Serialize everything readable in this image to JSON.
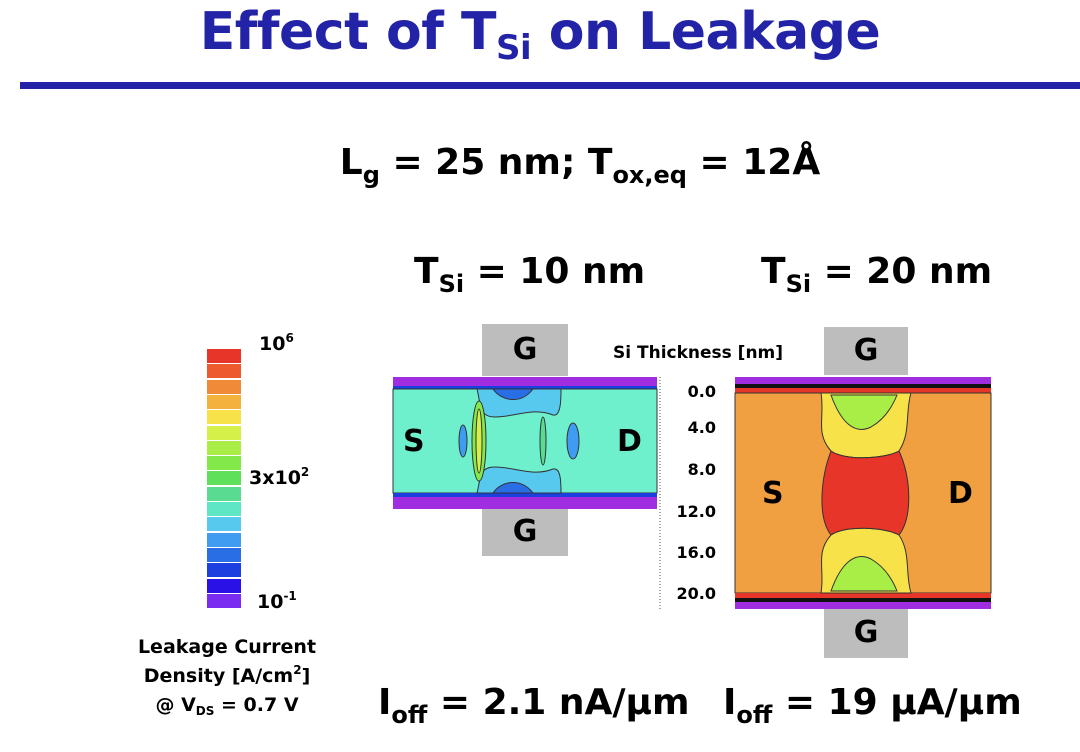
{
  "title": {
    "main_pre": "Effect of T",
    "main_sub": "Si",
    "main_post": " on Leakage"
  },
  "params": {
    "lg": "L",
    "lg_sub": "g",
    "lg_val": " = 25 nm; T",
    "tox_sub": "ox,eq",
    "tox_val": " = 12Å"
  },
  "devices": [
    {
      "tsi_pre": "T",
      "tsi_sub": "Si",
      "tsi_val": " = 10 nm",
      "ioff_pre": "I",
      "ioff_sub": "off",
      "ioff_val": " = 2.1 nA/μm",
      "gate_top": "G",
      "gate_bottom": "G",
      "source": "S",
      "drain": "D"
    },
    {
      "tsi_pre": "T",
      "tsi_sub": "Si",
      "tsi_val": " = 20 nm",
      "ioff_pre": "I",
      "ioff_sub": "off",
      "ioff_val": " = 19 μA/μm",
      "gate_top": "G",
      "gate_bottom": "G",
      "source": "S",
      "drain": "D"
    }
  ],
  "axis": {
    "title": "Si Thickness [nm]",
    "ticks": [
      "0.0",
      "4.0",
      "8.0",
      "12.0",
      "16.0",
      "20.0"
    ]
  },
  "colorbar": {
    "max_base": "10",
    "max_exp": "6",
    "mid_base": "3x10",
    "mid_exp": "2",
    "min_base": "10",
    "min_exp": "-1",
    "caption_line1": "Leakage Current",
    "caption_line2_pre": "Density [A/cm",
    "caption_line2_sup": "2",
    "caption_line2_post": "]",
    "caption_line3_pre": "@ V",
    "caption_line3_sub": "DS",
    "caption_line3_post": " = 0.7 V",
    "colors": [
      "#e8352a",
      "#ec5a2e",
      "#f08a38",
      "#f4b13e",
      "#f8e24a",
      "#d6f04a",
      "#a9ee46",
      "#83e84a",
      "#5fe05a",
      "#59dc92",
      "#5fe6c4",
      "#57c8ee",
      "#3f9cf0",
      "#2a6ee6",
      "#1d3fe0",
      "#2a12e6",
      "#7a2cf0"
    ]
  },
  "colors": {
    "title": "#2323a8",
    "gate": "#bdbdbd",
    "oxide": "#a02ee0"
  }
}
